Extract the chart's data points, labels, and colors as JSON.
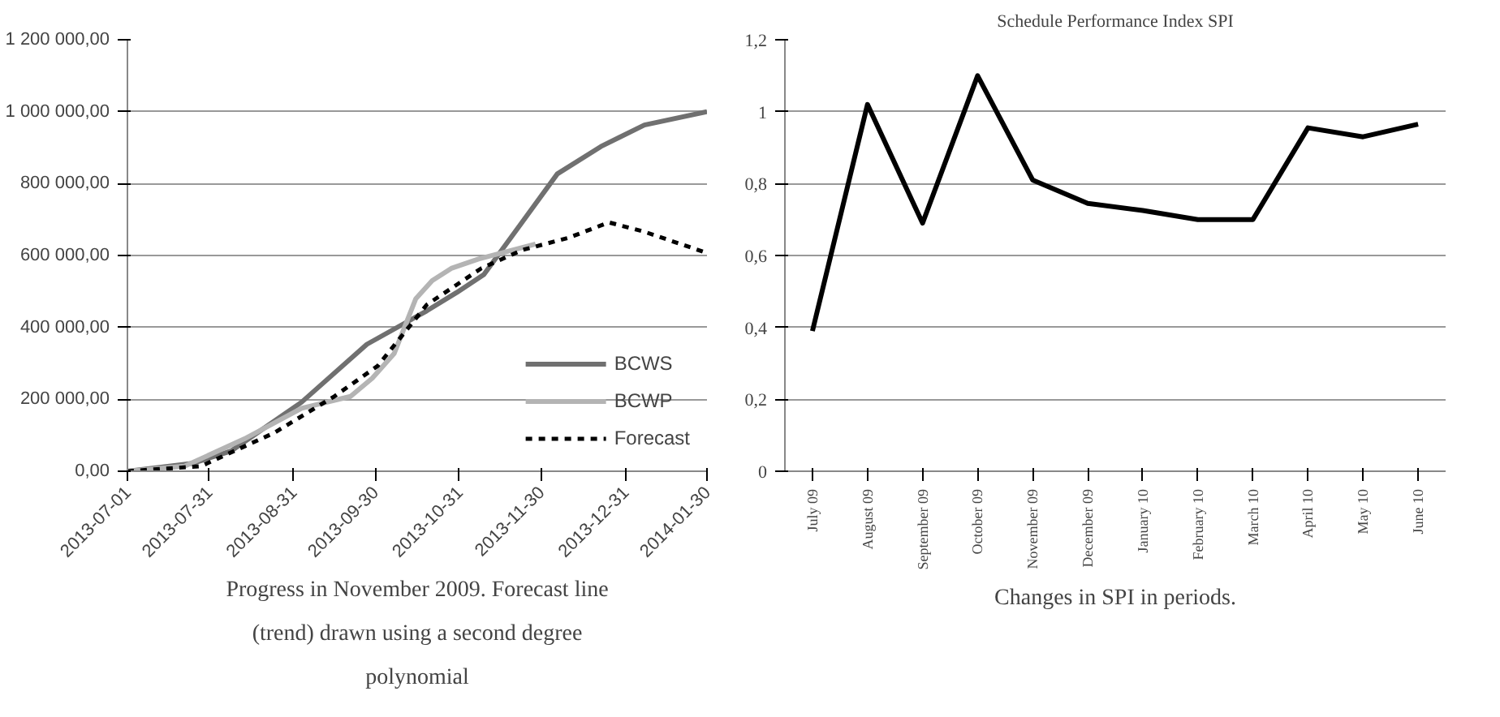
{
  "chart_data": [
    {
      "type": "line",
      "x": [
        "2013-07-01",
        "2013-07-25",
        "2013-08-08",
        "2013-09-03",
        "2013-09-27",
        "2013-10-19",
        "2013-10-30",
        "2013-11-09",
        "2013-11-23",
        "2013-12-06",
        "2013-12-22",
        "2014-01-07",
        "2014-01-30"
      ],
      "series": [
        {
          "name": "BCWS",
          "color": "#707070",
          "line_style": "solid",
          "values": [
            0,
            22000,
            56000,
            192000,
            353000,
            446000,
            497000,
            547000,
            692000,
            827000,
            903000,
            963000,
            1000000
          ]
        },
        {
          "name": "BCWP",
          "color": "#b4b4b4",
          "line_style": "solid",
          "x": [
            "2013-07-01",
            "2013-07-22",
            "2013-08-13",
            "2013-09-03",
            "2013-09-21",
            "2013-09-29",
            "2013-10-07",
            "2013-10-15",
            "2013-10-21",
            "2013-10-28",
            "2013-11-07",
            "2013-11-28"
          ],
          "values": [
            0,
            14000,
            90000,
            175000,
            208000,
            259000,
            327000,
            480000,
            530000,
            564000,
            590000,
            632000
          ]
        },
        {
          "name": "Forecast",
          "color": "#000000",
          "line_style": "dashed",
          "x": [
            "2013-07-01",
            "2013-07-28",
            "2013-08-24",
            "2013-09-15",
            "2013-10-01",
            "2013-10-19",
            "2013-11-08",
            "2013-11-23",
            "2013-12-10",
            "2013-12-25",
            "2014-01-07",
            "2014-01-30"
          ],
          "values": [
            0,
            14000,
            107000,
            208000,
            293000,
            463000,
            564000,
            615000,
            649000,
            692000,
            666000,
            607000
          ]
        }
      ],
      "xlim": [
        "2013-07-01",
        "2014-01-30"
      ],
      "xticks": [
        "2013-07-01",
        "2013-07-31",
        "2013-08-31",
        "2013-09-30",
        "2013-10-31",
        "2013-11-30",
        "2013-12-31",
        "2014-01-30"
      ],
      "ylim": [
        0,
        1200000
      ],
      "yticks": [
        {
          "value": 0,
          "label": "0,00"
        },
        {
          "value": 200000,
          "label": "200 000,00"
        },
        {
          "value": 400000,
          "label": "400 000,00"
        },
        {
          "value": 600000,
          "label": "600 000,00"
        },
        {
          "value": 800000,
          "label": "800 000,00"
        },
        {
          "value": 1000000,
          "label": "1 000 000,00"
        },
        {
          "value": 1200000,
          "label": "1 200 000,00"
        }
      ],
      "grid": "y",
      "legend": "bottom right",
      "annotations": [
        "Progress in November 2009. Forecast line (trend) drawn using a second degree polynomial"
      ]
    },
    {
      "type": "line",
      "title": "Schedule Performance Index SPI",
      "categories": [
        "July 09",
        "August 09",
        "September 09",
        "October 09",
        "November 09",
        "December 09",
        "January 10",
        "February 10",
        "March 10",
        "April 10",
        "May 10",
        "June 10"
      ],
      "series": [
        {
          "color": "#000000",
          "line_style": "solid",
          "values": [
            0.39,
            1.02,
            0.69,
            1.1,
            0.81,
            0.745,
            0.725,
            0.7,
            0.7,
            0.955,
            0.93,
            0.965
          ]
        }
      ],
      "ylim": [
        0,
        1.2
      ],
      "yticks": [
        0,
        {
          "value": 0.2,
          "label": "0,2"
        },
        {
          "value": 0.4,
          "label": "0,4"
        },
        {
          "value": 0.6,
          "label": "0,6"
        },
        {
          "value": 0.8,
          "label": "0,8"
        },
        1,
        {
          "value": 1.2,
          "label": "1,2"
        }
      ],
      "grid": "y",
      "legend": false,
      "annotations": [
        "Changes in SPI in periods."
      ]
    }
  ]
}
